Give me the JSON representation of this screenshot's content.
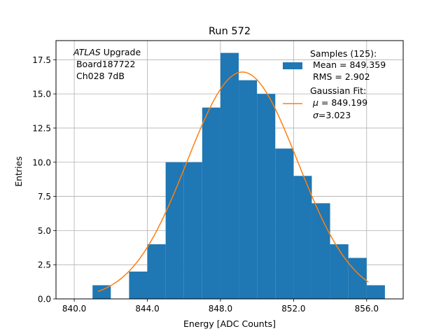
{
  "chart_data": {
    "type": "bar",
    "title": "Run 572",
    "xlabel": "Energy [ADC Counts]",
    "ylabel": "Entries",
    "xlim": [
      839.0,
      858.0
    ],
    "ylim": [
      0.0,
      18.9
    ],
    "grid": true,
    "xticks": [
      {
        "value": 840,
        "label": "840.0"
      },
      {
        "value": 844,
        "label": "844.0"
      },
      {
        "value": 848,
        "label": "848.0"
      },
      {
        "value": 852,
        "label": "852.0"
      },
      {
        "value": 856,
        "label": "856.0"
      }
    ],
    "yticks": [
      {
        "value": 0.0,
        "label": "0.0"
      },
      {
        "value": 2.5,
        "label": "2.5"
      },
      {
        "value": 5.0,
        "label": "5.0"
      },
      {
        "value": 7.5,
        "label": "7.5"
      },
      {
        "value": 10.0,
        "label": "10.0"
      },
      {
        "value": 12.5,
        "label": "12.5"
      },
      {
        "value": 15.0,
        "label": "15.0"
      },
      {
        "value": 17.5,
        "label": "17.5"
      }
    ],
    "bin_edges": [
      841,
      842,
      843,
      844,
      845,
      846,
      847,
      848,
      849,
      850,
      851,
      852,
      853,
      854,
      855,
      856,
      857
    ],
    "counts": [
      1,
      0,
      2,
      4,
      10,
      10,
      14,
      18,
      16,
      15,
      11,
      9,
      7,
      4,
      3,
      1
    ],
    "bar_color": "#1f77b4",
    "fit": {
      "type": "gaussian",
      "amplitude": 16.6,
      "mu": 849.199,
      "sigma": 3.023,
      "x_range": [
        841.3,
        856.1
      ],
      "color": "#ff7f0e"
    },
    "annotation": {
      "italic": "ATLAS",
      "rest": " Upgrade",
      "line2": " Board187722",
      "line3": " Ch028 7dB"
    },
    "legend": {
      "position": "top-right",
      "samples_title": "Samples (125):",
      "samples_mean": " Mean = 849.359",
      "samples_rms": " RMS = 2.902",
      "fit_title": "Gaussian Fit:",
      "fit_mu_symbol": "μ",
      "fit_mu_value": " = 849.199",
      "fit_sigma_symbol": "σ",
      "fit_sigma_value": "=3.023"
    }
  }
}
